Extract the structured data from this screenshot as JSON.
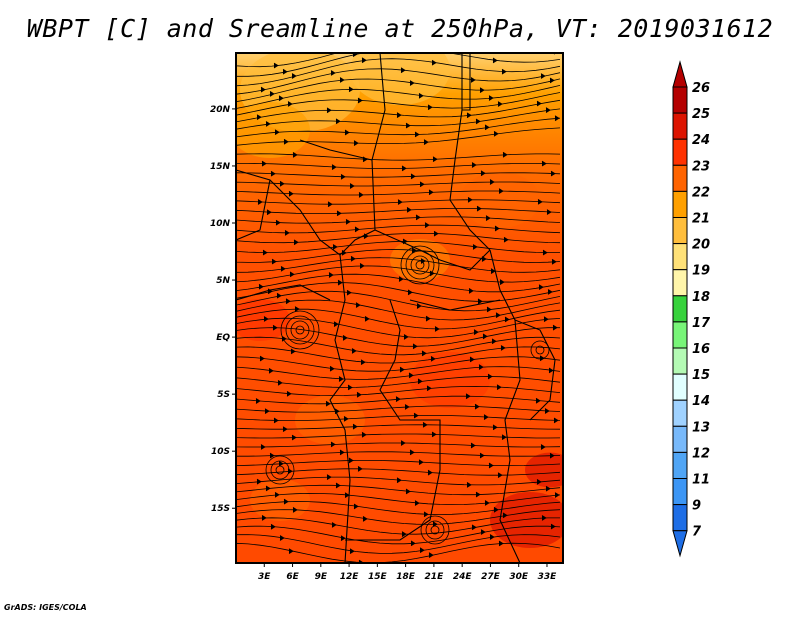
{
  "title": "WBPT [C] and Sreamline at 250hPa, VT: 2019031612",
  "credit": "GrADS: IGES/COLA",
  "map": {
    "lon_range": [
      0,
      34.7
    ],
    "lat_range": [
      -19.8,
      24.9
    ],
    "lat_ticks": [
      {
        "v": 20,
        "label": "20N"
      },
      {
        "v": 15,
        "label": "15N"
      },
      {
        "v": 10,
        "label": "10N"
      },
      {
        "v": 5,
        "label": "5N"
      },
      {
        "v": 0,
        "label": "EQ"
      },
      {
        "v": -5,
        "label": "5S"
      },
      {
        "v": -10,
        "label": "10S"
      },
      {
        "v": -15,
        "label": "15S"
      }
    ],
    "lon_ticks": [
      {
        "v": 3,
        "label": "3E"
      },
      {
        "v": 6,
        "label": "6E"
      },
      {
        "v": 9,
        "label": "9E"
      },
      {
        "v": 12,
        "label": "12E"
      },
      {
        "v": 15,
        "label": "15E"
      },
      {
        "v": 18,
        "label": "18E"
      },
      {
        "v": 21,
        "label": "21E"
      },
      {
        "v": 24,
        "label": "24E"
      },
      {
        "v": 27,
        "label": "27E"
      },
      {
        "v": 30,
        "label": "30E"
      },
      {
        "v": 33,
        "label": "33E"
      }
    ]
  },
  "colorbar": {
    "labels": [
      "26",
      "25",
      "24",
      "23",
      "22",
      "21",
      "20",
      "19",
      "18",
      "17",
      "16",
      "15",
      "14",
      "13",
      "12",
      "11",
      "9",
      "7"
    ],
    "colors": [
      "#b40000",
      "#dc1400",
      "#ff3200",
      "#ff6400",
      "#ffa000",
      "#ffbe3c",
      "#ffe178",
      "#fff5aa",
      "#37d23c",
      "#78f578",
      "#b4fab4",
      "#e1ffff",
      "#a0d2ff",
      "#78b9fa",
      "#50a5f5",
      "#3c96f5",
      "#1e6ee6"
    ],
    "top_arrow_color": "#b40000",
    "bottom_arrow_color": "#1e6ee6"
  }
}
